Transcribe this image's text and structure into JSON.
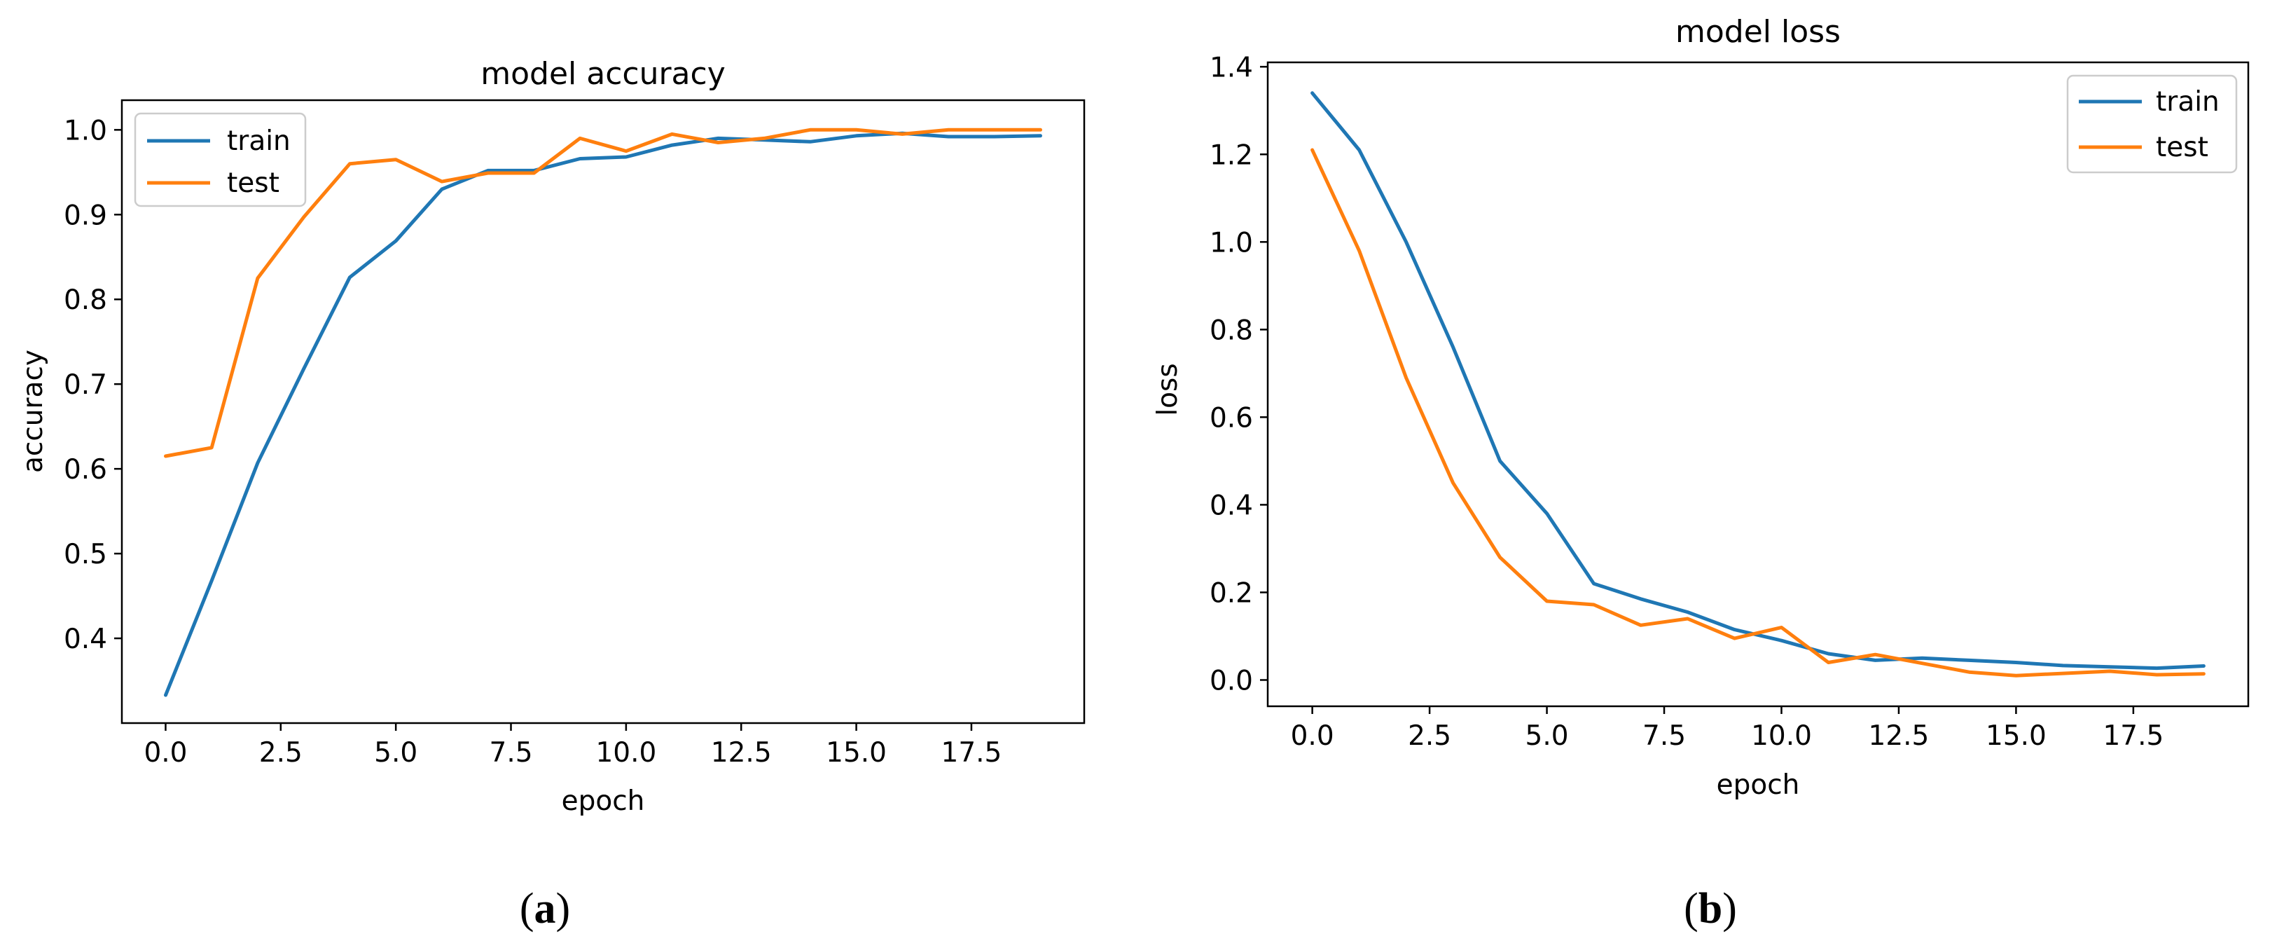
{
  "colors": {
    "train": "#1f77b4",
    "test": "#ff7f0e",
    "axis": "#000000",
    "background": "#ffffff"
  },
  "chart_data": [
    {
      "type": "line",
      "panel_label": "(a)",
      "panel_label_parts": {
        "open": "(",
        "letter": "a",
        "close": ")"
      },
      "title": "model accuracy",
      "xlabel": "epoch",
      "ylabel": "accuracy",
      "xlim": [
        -0.95,
        19.95
      ],
      "ylim": [
        0.3,
        1.035
      ],
      "xticks": [
        0,
        2.5,
        5,
        7.5,
        10,
        12.5,
        15,
        17.5
      ],
      "xtick_labels": [
        "0.0",
        "2.5",
        "5.0",
        "7.5",
        "10.0",
        "12.5",
        "15.0",
        "17.5"
      ],
      "yticks": [
        0.4,
        0.5,
        0.6,
        0.7,
        0.8,
        0.9,
        1.0
      ],
      "ytick_labels": [
        "0.4",
        "0.5",
        "0.6",
        "0.7",
        "0.8",
        "0.9",
        "1.0"
      ],
      "grid": false,
      "legend_position": "upper left",
      "x": [
        0,
        1,
        2,
        3,
        4,
        5,
        6,
        7,
        8,
        9,
        10,
        11,
        12,
        13,
        14,
        15,
        16,
        17,
        18,
        19
      ],
      "series": [
        {
          "name": "train",
          "color": "#1f77b4",
          "values": [
            0.333,
            0.468,
            0.607,
            0.718,
            0.826,
            0.869,
            0.93,
            0.952,
            0.952,
            0.966,
            0.968,
            0.982,
            0.99,
            0.988,
            0.986,
            0.993,
            0.996,
            0.992,
            0.992,
            0.993
          ]
        },
        {
          "name": "test",
          "color": "#ff7f0e",
          "values": [
            0.615,
            0.625,
            0.825,
            0.897,
            0.96,
            0.965,
            0.939,
            0.949,
            0.949,
            0.99,
            0.975,
            0.995,
            0.985,
            0.99,
            1.0,
            1.0,
            0.995,
            1.0,
            1.0,
            1.0
          ]
        }
      ]
    },
    {
      "type": "line",
      "panel_label": "(b)",
      "panel_label_parts": {
        "open": "(",
        "letter": "b",
        "close": ")"
      },
      "title": "model loss",
      "xlabel": "epoch",
      "ylabel": "loss",
      "xlim": [
        -0.95,
        19.95
      ],
      "ylim": [
        -0.06,
        1.41
      ],
      "xticks": [
        0,
        2.5,
        5,
        7.5,
        10,
        12.5,
        15,
        17.5
      ],
      "xtick_labels": [
        "0.0",
        "2.5",
        "5.0",
        "7.5",
        "10.0",
        "12.5",
        "15.0",
        "17.5"
      ],
      "yticks": [
        0,
        0.2,
        0.4,
        0.6,
        0.8,
        1.0,
        1.2,
        1.4
      ],
      "ytick_labels": [
        "0.0",
        "0.2",
        "0.4",
        "0.6",
        "0.8",
        "1.0",
        "1.2",
        "1.4"
      ],
      "grid": false,
      "legend_position": "upper right",
      "x": [
        0,
        1,
        2,
        3,
        4,
        5,
        6,
        7,
        8,
        9,
        10,
        11,
        12,
        13,
        14,
        15,
        16,
        17,
        18,
        19
      ],
      "series": [
        {
          "name": "train",
          "color": "#1f77b4",
          "values": [
            1.34,
            1.21,
            1.0,
            0.76,
            0.5,
            0.38,
            0.22,
            0.185,
            0.155,
            0.115,
            0.09,
            0.06,
            0.045,
            0.05,
            0.045,
            0.04,
            0.033,
            0.03,
            0.027,
            0.032
          ]
        },
        {
          "name": "test",
          "color": "#ff7f0e",
          "values": [
            1.21,
            0.98,
            0.69,
            0.45,
            0.28,
            0.18,
            0.172,
            0.125,
            0.14,
            0.095,
            0.12,
            0.04,
            0.058,
            0.038,
            0.018,
            0.01,
            0.015,
            0.02,
            0.012,
            0.014
          ]
        }
      ]
    }
  ]
}
